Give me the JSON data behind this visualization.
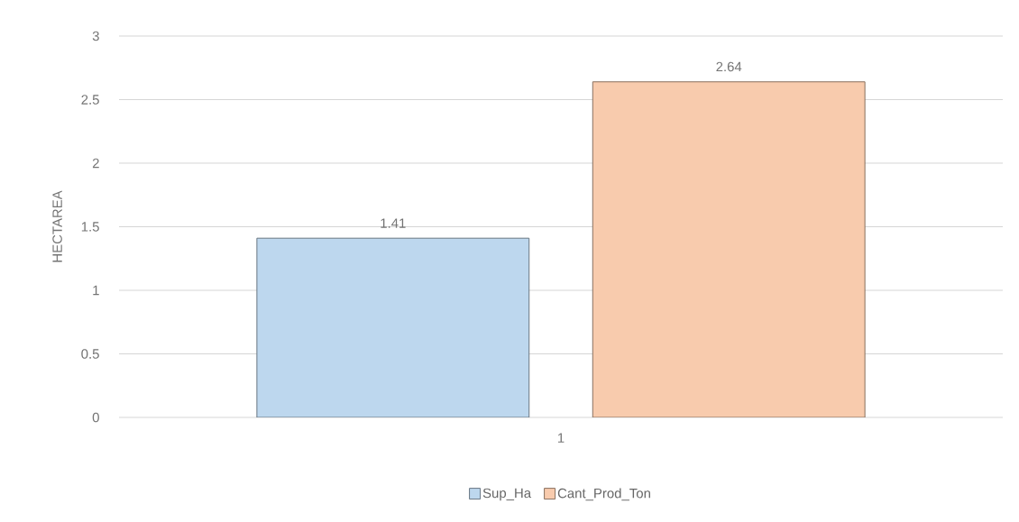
{
  "chart_data": {
    "type": "bar",
    "categories": [
      "1"
    ],
    "ylabel": "HECTAREA",
    "series": [
      {
        "name": "Sup_Ha",
        "color": "#bdd7ee",
        "values": [
          1.41
        ]
      },
      {
        "name": "Cant_Prod_Ton",
        "color": "#f8cbad",
        "values": [
          2.64
        ]
      }
    ],
    "ylim": [
      0,
      3
    ],
    "yticks": [
      0,
      0.5,
      1,
      1.5,
      2,
      2.5,
      3
    ],
    "grid": "y",
    "legend": "bottom",
    "data_labels": true
  }
}
